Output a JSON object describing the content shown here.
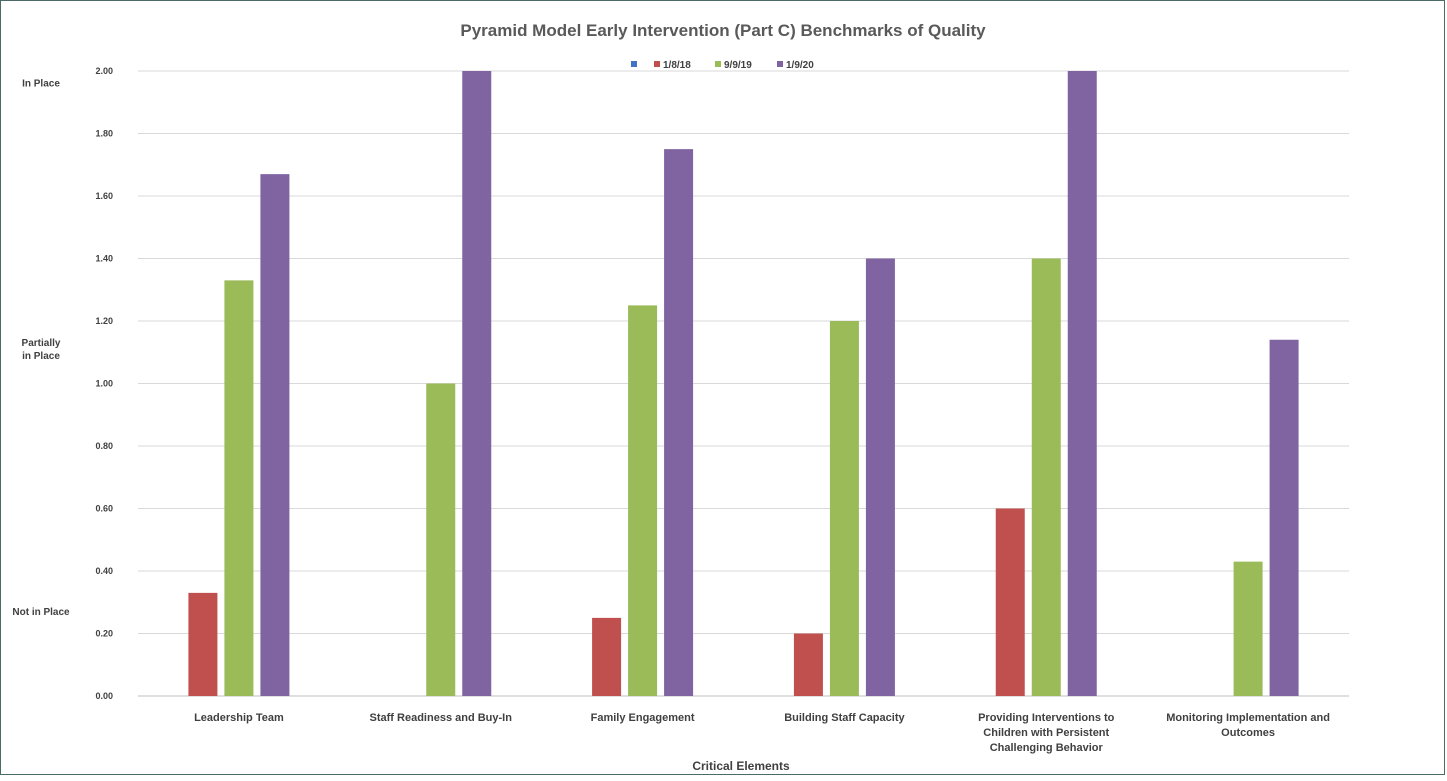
{
  "chart_data": {
    "type": "bar",
    "title": "Pyramid Model Early Intervention (Part C) Benchmarks of Quality",
    "xlabel": "Critical Elements",
    "ylabel": "",
    "ylim": [
      0,
      2
    ],
    "yticks": [
      "0.00",
      "0.20",
      "0.40",
      "0.60",
      "0.80",
      "1.00",
      "1.20",
      "1.40",
      "1.60",
      "1.80",
      "2.00"
    ],
    "grid": true,
    "legend_position": "top-center",
    "side_labels": [
      {
        "text": [
          "In Place"
        ],
        "value": 1.95
      },
      {
        "text": [
          "Partially",
          "in Place"
        ],
        "value": 1.12
      },
      {
        "text": [
          "Not in Place"
        ],
        "value": 0.26
      }
    ],
    "categories": [
      [
        "Leadership Team"
      ],
      [
        "Staff Readiness and Buy-In"
      ],
      [
        "Family Engagement"
      ],
      [
        "Building Staff Capacity"
      ],
      [
        "Providing Interventions to",
        "Children with Persistent",
        "Challenging Behavior"
      ],
      [
        "Monitoring Implementation and",
        "Outcomes"
      ]
    ],
    "series": [
      {
        "name": "",
        "color": "#4472C4",
        "values": [
          0,
          0,
          0,
          0,
          0,
          0
        ]
      },
      {
        "name": "1/8/18",
        "color": "#C0504D",
        "values": [
          0.33,
          0,
          0.25,
          0.2,
          0.6,
          0
        ]
      },
      {
        "name": "9/9/19",
        "color": "#9BBB59",
        "values": [
          1.33,
          1.0,
          1.25,
          1.2,
          1.4,
          0.43
        ]
      },
      {
        "name": "1/9/20",
        "color": "#8064A2",
        "values": [
          1.67,
          2.0,
          1.75,
          1.4,
          2.0,
          1.14
        ]
      }
    ]
  }
}
